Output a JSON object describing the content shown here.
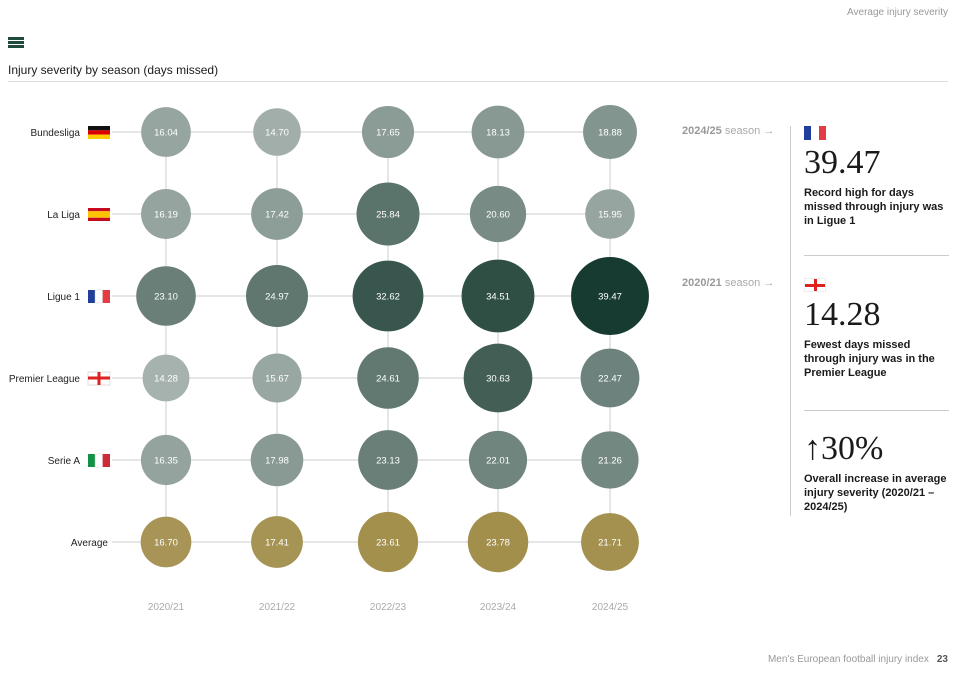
{
  "header": "Average injury severity",
  "footer": {
    "text": "Men's European football injury index",
    "page": "23"
  },
  "title": "Injury severity by season (days missed)",
  "chart_data": {
    "type": "bubble-grid",
    "title": "Injury severity by season (days missed)",
    "categories": [
      "2020/21",
      "2021/22",
      "2022/23",
      "2023/24",
      "2024/25"
    ],
    "series": [
      {
        "name": "Bundesliga",
        "flag": "germany",
        "values": [
          16.04,
          14.7,
          17.65,
          18.13,
          18.88
        ]
      },
      {
        "name": "La Liga",
        "flag": "spain",
        "values": [
          16.19,
          17.42,
          25.84,
          20.6,
          15.95
        ]
      },
      {
        "name": "Ligue 1",
        "flag": "france",
        "values": [
          23.1,
          24.97,
          32.62,
          34.51,
          39.47
        ]
      },
      {
        "name": "Premier League",
        "flag": "england",
        "values": [
          14.28,
          15.67,
          24.61,
          30.63,
          22.47
        ]
      },
      {
        "name": "Serie A",
        "flag": "italy",
        "values": [
          16.35,
          17.98,
          23.13,
          22.01,
          21.26
        ]
      },
      {
        "name": "Average",
        "flag": "",
        "values": [
          16.7,
          17.41,
          23.61,
          23.78,
          21.71
        ]
      }
    ],
    "colors": {
      "low": "#aab5b1",
      "high": "#173b30",
      "avg_low": "#a8965a",
      "avg_high": "#9a8536"
    }
  },
  "highlights": [
    {
      "season": "2024/25",
      "season_suffix": " season →",
      "flag": "france",
      "value": "39.47",
      "desc": "Record high for days missed through injury was in Ligue 1"
    },
    {
      "season": "2020/21",
      "season_suffix": " season →",
      "flag": "england",
      "value": "14.28",
      "desc": "Fewest days missed through injury was in the Premier League"
    },
    {
      "value": "↑30%",
      "desc": "Overall increase in average injury severity (2020/21 – 2024/25)"
    }
  ]
}
